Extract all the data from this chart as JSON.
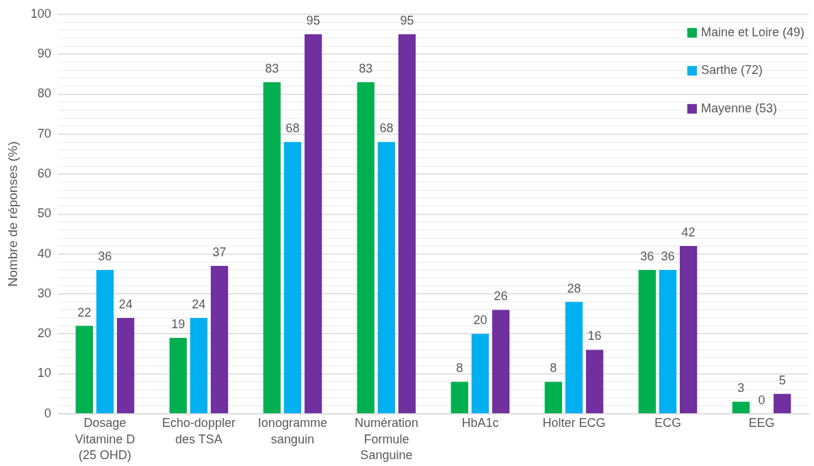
{
  "chart_data": {
    "type": "bar",
    "ylabel": "Nombre de réponses (%)",
    "categories": [
      "Dosage Vitamine D (25 OHD)",
      "Echo-doppler des TSA",
      "Ionogramme sanguin",
      "Numération Formule Sanguine",
      "HbA1c",
      "Holter ECG",
      "ECG",
      "EEG"
    ],
    "series": [
      {
        "name": "Maine et Loire (49)",
        "color": "#00b050",
        "values": [
          22,
          19,
          83,
          83,
          8,
          8,
          36,
          3
        ]
      },
      {
        "name": "Sarthe (72)",
        "color": "#00b0f0",
        "values": [
          36,
          24,
          68,
          68,
          20,
          28,
          36,
          0
        ]
      },
      {
        "name": "Mayenne (53)",
        "color": "#7030a0",
        "values": [
          24,
          37,
          95,
          95,
          26,
          16,
          42,
          5
        ]
      }
    ],
    "ylim": [
      0,
      100
    ],
    "yticks": [
      0,
      {
        "value": 2,
        "label": null
      },
      {
        "value": 4,
        "label": null
      },
      {
        "value": 6,
        "label": null
      },
      {
        "value": 8,
        "label": null
      },
      10,
      {
        "value": 12,
        "label": null
      },
      {
        "value": 14,
        "label": null
      },
      {
        "value": 16,
        "label": null
      },
      {
        "value": 18,
        "label": null
      },
      20,
      {
        "value": 22,
        "label": null
      },
      {
        "value": 24,
        "label": null
      },
      {
        "value": 26,
        "label": null
      },
      {
        "value": 28,
        "label": null
      },
      30,
      {
        "value": 32,
        "label": null
      },
      {
        "value": 34,
        "label": null
      },
      {
        "value": 36,
        "label": null
      },
      {
        "value": 38,
        "label": null
      },
      40,
      {
        "value": 42,
        "label": null
      },
      {
        "value": 44,
        "label": null
      },
      {
        "value": 46,
        "label": null
      },
      {
        "value": 48,
        "label": null
      },
      50,
      {
        "value": 52,
        "label": null
      },
      {
        "value": 54,
        "label": null
      },
      {
        "value": 56,
        "label": null
      },
      {
        "value": 58,
        "label": null
      },
      60,
      {
        "value": 62,
        "label": null
      },
      {
        "value": 64,
        "label": null
      },
      {
        "value": 66,
        "label": null
      },
      {
        "value": 68,
        "label": null
      },
      70,
      {
        "value": 72,
        "label": null
      },
      {
        "value": 74,
        "label": null
      },
      {
        "value": 76,
        "label": null
      },
      {
        "value": 78,
        "label": null
      },
      80,
      {
        "value": 82,
        "label": null
      },
      {
        "value": 84,
        "label": null
      },
      {
        "value": 86,
        "label": null
      },
      {
        "value": 88,
        "label": null
      },
      90,
      {
        "value": 92,
        "label": null
      },
      {
        "value": 94,
        "label": null
      },
      {
        "value": 96,
        "label": null
      },
      {
        "value": 98,
        "label": null
      },
      100
    ],
    "grid": "y",
    "legend": "top right",
    "data_labels": true
  }
}
